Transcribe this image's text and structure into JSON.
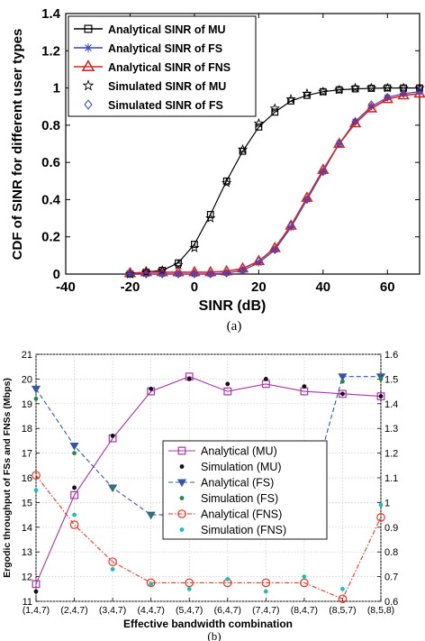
{
  "chart_data": [
    {
      "type": "line",
      "xlabel": "SINR (dB)",
      "ylabel": "CDF of SINR for different user types",
      "xlim": [
        -40,
        70
      ],
      "ylim": [
        0,
        1.4
      ],
      "xticks": [
        "-40",
        "-20",
        "0",
        "20",
        "40",
        "60"
      ],
      "yticks": [
        "0",
        "0.2",
        "0.4",
        "0.6",
        "0.8",
        "1",
        "1.2",
        "1.4"
      ],
      "caption": "(a)",
      "legend_position": "top-left",
      "grid": false,
      "series": [
        {
          "name": "Analytical SINR of MU",
          "color": "#000000",
          "line": "solid",
          "marker": "square",
          "x": [
            -20,
            -15,
            -10,
            -5,
            0,
            5,
            10,
            15,
            20,
            25,
            30,
            35,
            40,
            45,
            50,
            55,
            60,
            65,
            70
          ],
          "y": [
            0,
            0.01,
            0.02,
            0.06,
            0.16,
            0.32,
            0.5,
            0.66,
            0.79,
            0.87,
            0.93,
            0.96,
            0.98,
            0.99,
            0.995,
            0.998,
            1,
            1,
            1
          ]
        },
        {
          "name": "Analytical SINR of FS",
          "color": "#3344cc",
          "line": "solid",
          "marker": "star",
          "x": [
            -20,
            -15,
            -10,
            -5,
            0,
            5,
            10,
            15,
            20,
            25,
            30,
            35,
            40,
            45,
            50,
            55,
            60,
            65,
            70
          ],
          "y": [
            0,
            0,
            0,
            0,
            0,
            0,
            0.005,
            0.02,
            0.06,
            0.13,
            0.25,
            0.4,
            0.55,
            0.7,
            0.82,
            0.9,
            0.95,
            0.97,
            0.98
          ]
        },
        {
          "name": "Analytical SINR of FNS",
          "color": "#dd2222",
          "line": "solid",
          "marker": "triangle",
          "x": [
            -20,
            -15,
            -10,
            -5,
            0,
            5,
            10,
            15,
            20,
            25,
            30,
            35,
            40,
            45,
            50,
            55,
            60,
            65,
            70
          ],
          "y": [
            0.005,
            0.01,
            0.01,
            0.01,
            0.01,
            0.01,
            0.015,
            0.03,
            0.07,
            0.14,
            0.26,
            0.41,
            0.56,
            0.7,
            0.81,
            0.89,
            0.94,
            0.96,
            0.97
          ]
        },
        {
          "name": "Simulated SINR of MU",
          "color": "#000000",
          "line": "none",
          "marker": "pentagram",
          "x": [
            -20,
            -15,
            -10,
            -5,
            0,
            5,
            10,
            15,
            20,
            25,
            30,
            35,
            40,
            45,
            50,
            55,
            60,
            65,
            70
          ],
          "y": [
            0,
            0.01,
            0.02,
            0.05,
            0.14,
            0.3,
            0.49,
            0.67,
            0.81,
            0.89,
            0.94,
            0.97,
            0.98,
            0.99,
            1,
            1,
            1,
            1,
            1
          ]
        },
        {
          "name": "Simulated SINR of FS",
          "color": "#3344cc",
          "line": "none",
          "marker": "diamond",
          "x": [
            -20,
            -15,
            -10,
            -5,
            0,
            5,
            10,
            15,
            20,
            25,
            30,
            35,
            40,
            45,
            50,
            55,
            60,
            65,
            70
          ],
          "y": [
            0,
            0,
            0,
            0,
            0,
            0,
            0.005,
            0.02,
            0.07,
            0.13,
            0.26,
            0.4,
            0.55,
            0.7,
            0.82,
            0.91,
            0.95,
            0.97,
            0.98
          ]
        }
      ]
    },
    {
      "type": "line",
      "xlabel": "Effective bandwidth combination",
      "ylabel": "Ergodic throughput of FSs and FNSs (Mbps)",
      "categories": [
        "(1,4,7)",
        "(2,4,7)",
        "(3,4,7)",
        "(4,4,7)",
        "(5,4,7)",
        "(6,4,7)",
        "(7,4,7)",
        "(8,4,7)",
        "(8,5,7)",
        "(8,5,8)"
      ],
      "ylim": [
        11,
        21
      ],
      "yticks": [
        "11",
        "12",
        "13",
        "14",
        "15",
        "16",
        "17",
        "18",
        "19",
        "20",
        "21"
      ],
      "y2lim": [
        0.6,
        1.6
      ],
      "y2ticks": [
        "0.6",
        "0.7",
        "0.8",
        "0.9",
        "1",
        "1.1",
        "1.2",
        "1.3",
        "1.4",
        "1.5",
        "1.6"
      ],
      "caption": "(b)",
      "legend_position": "center",
      "grid": true,
      "series": [
        {
          "name": "Analytical (MU)",
          "color": "#aa33aa",
          "line": "solid",
          "marker": "square",
          "axis": "left",
          "values": [
            11.7,
            15.3,
            17.6,
            19.5,
            20.1,
            19.5,
            19.8,
            19.5,
            19.4,
            19.3
          ]
        },
        {
          "name": "Simulation (MU)",
          "color": "#111111",
          "line": "none",
          "marker": "dot",
          "axis": "left",
          "values": [
            11.4,
            15.6,
            17.7,
            19.6,
            20.0,
            19.8,
            20.0,
            19.7,
            19.4,
            19.3
          ]
        },
        {
          "name": "Analytical (FS)",
          "color": "#3355aa",
          "line": "dashed",
          "marker": "triangle-down",
          "axis": "left",
          "values": [
            19.6,
            17.3,
            15.6,
            14.5,
            14.5,
            14.5,
            14.5,
            14.5,
            20.1,
            20.1
          ]
        },
        {
          "name": "Simulation (FS)",
          "color": "#228844",
          "line": "none",
          "marker": "dot",
          "axis": "left",
          "values": [
            19.2,
            17.0,
            15.6,
            14.5,
            14.6,
            14.4,
            14.7,
            14.6,
            19.9,
            20.0
          ]
        },
        {
          "name": "Analytical (FNS)",
          "color": "#ee3322",
          "line": "dashdot",
          "marker": "circle",
          "axis": "right",
          "values": [
            1.11,
            0.91,
            0.76,
            0.675,
            0.675,
            0.675,
            0.675,
            0.675,
            0.61,
            0.94
          ]
        },
        {
          "name": "Simulation (FNS)",
          "color": "#22bbbb",
          "line": "none",
          "marker": "dot",
          "axis": "right",
          "values": [
            1.05,
            0.95,
            0.73,
            0.67,
            0.65,
            0.69,
            0.64,
            0.7,
            0.65,
            0.99
          ]
        }
      ]
    }
  ]
}
